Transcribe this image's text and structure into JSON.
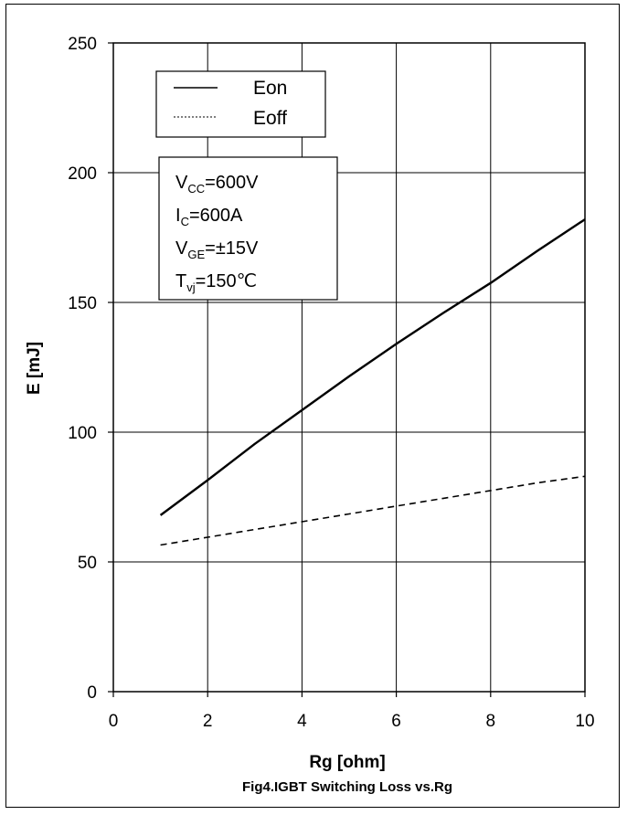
{
  "chart_data": {
    "type": "line",
    "caption": "Fig4.IGBT Switching Loss vs.Rg",
    "xlabel": "Rg  [ohm]",
    "ylabel": "E  [mJ]",
    "xlim": [
      0,
      10
    ],
    "ylim": [
      0,
      250
    ],
    "xticks": [
      0,
      2,
      4,
      6,
      8,
      10
    ],
    "yticks": [
      0,
      50,
      100,
      150,
      200,
      250
    ],
    "grid": true,
    "legend_position": "top-left",
    "series": [
      {
        "name": "Eon",
        "style": "solid",
        "color": "#000000",
        "x": [
          1,
          2,
          3,
          4,
          5,
          6,
          7,
          8,
          9,
          10
        ],
        "y": [
          68,
          81.5,
          95.5,
          108.5,
          121.5,
          134,
          146,
          157.5,
          170,
          182
        ]
      },
      {
        "name": "Eoff",
        "style": "dashed",
        "color": "#000000",
        "x": [
          1,
          2,
          3,
          4,
          5,
          6,
          7,
          8,
          9,
          10
        ],
        "y": [
          56.5,
          59.5,
          62.5,
          65.5,
          68.5,
          71.5,
          74.5,
          77.5,
          80.5,
          83
        ]
      }
    ],
    "conditions": [
      {
        "main": "V",
        "sub": "CC",
        "rest": "=600V"
      },
      {
        "main": "I",
        "sub": "C",
        "rest": "=600A"
      },
      {
        "main": "V",
        "sub": "GE",
        "rest": "=±15V"
      },
      {
        "main": "T",
        "sub": "vj",
        "rest": "=150℃"
      }
    ]
  }
}
